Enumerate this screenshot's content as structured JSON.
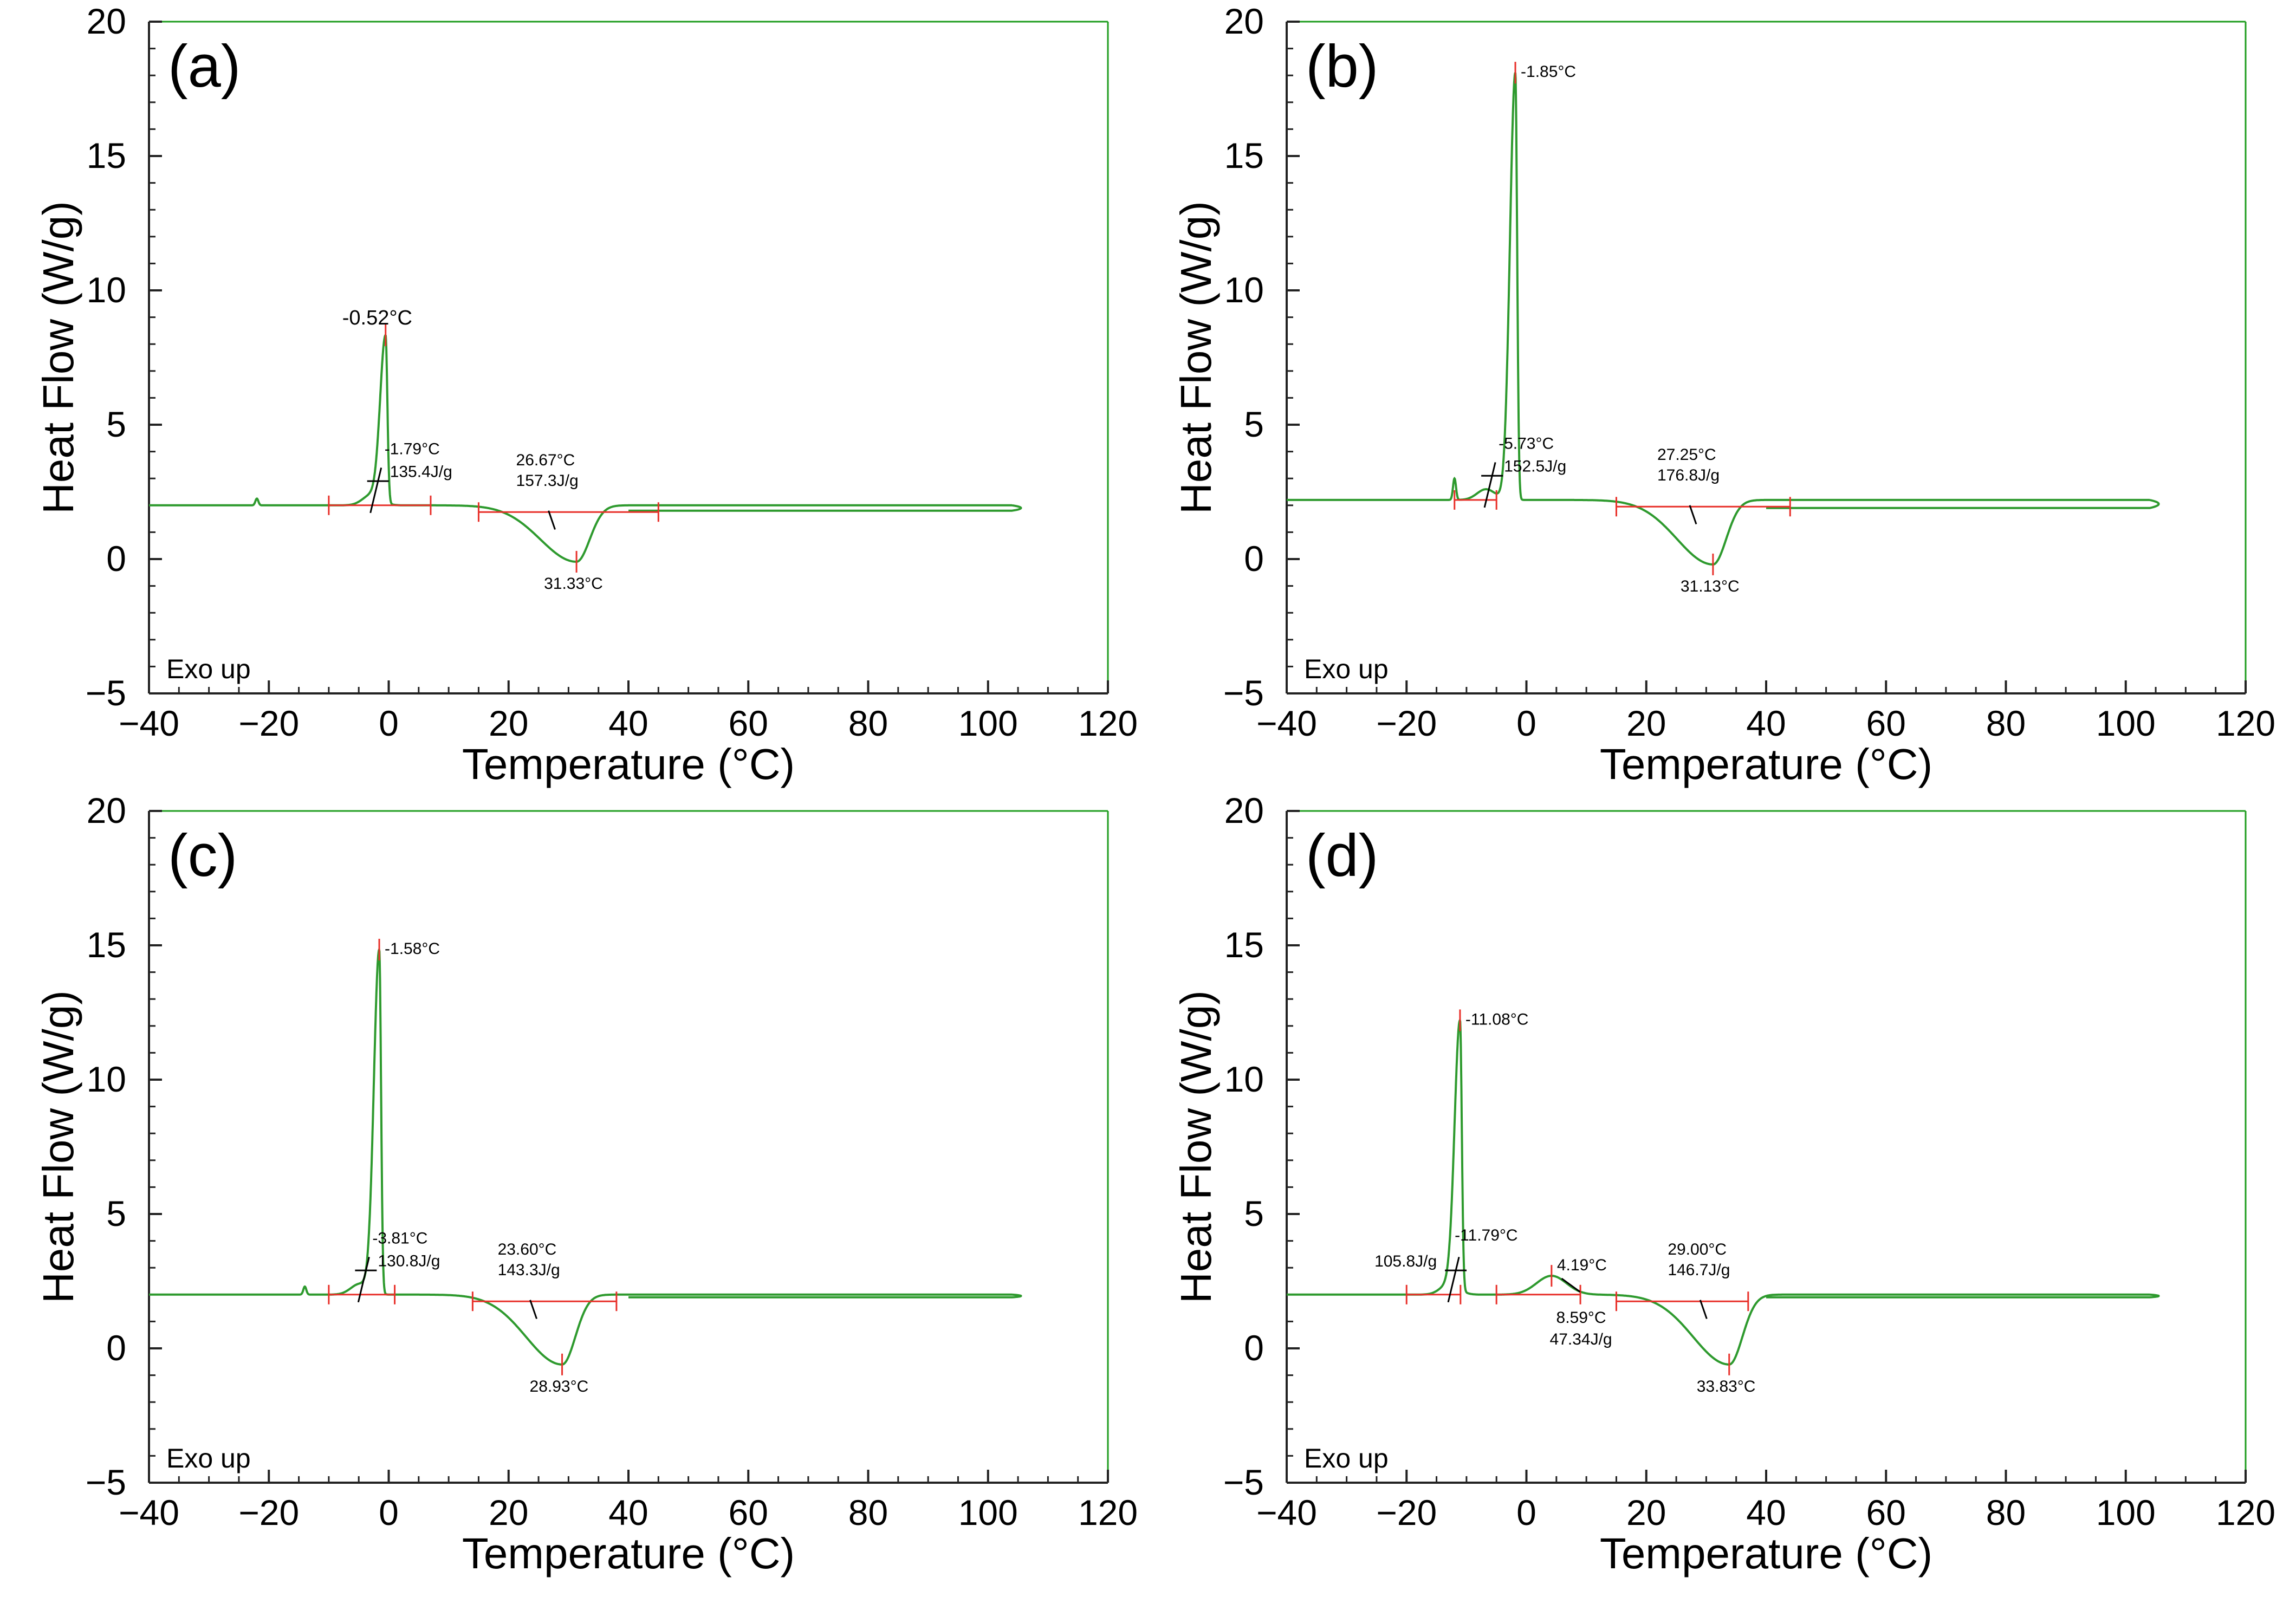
{
  "figure": {
    "type": "multi-panel DSC thermogram"
  },
  "colors": {
    "curve": "#2e9a2e",
    "baseline": "#e8302a",
    "tangent": "#000000",
    "frame": "#1f9d1f",
    "text": "#000000"
  },
  "chart_data": [
    {
      "type": "line",
      "panel": "a",
      "panel_label": "(a)",
      "note": "Exo up",
      "xlabel": "Temperature (°C)",
      "ylabel": "Heat Flow (W/g)",
      "xlim": [
        -40,
        120
      ],
      "ylim": [
        -5,
        20
      ],
      "xticks": [
        -40,
        -20,
        0,
        20,
        40,
        60,
        80,
        100,
        120
      ],
      "yticks": [
        -5,
        0,
        5,
        10,
        15,
        20
      ],
      "baseline_heat_flow": 2.0,
      "return_heat_flow": 1.8,
      "x_start": -40,
      "x_end": 104,
      "spike": {
        "x": -22,
        "h": 0.25
      },
      "exotherm": {
        "peak_T": -0.52,
        "peak_label": "-0.52°C",
        "onset_T": -1.79,
        "onset_label": "-1.79°C",
        "enthalpy_label": "135.4J/g",
        "height": 8.2,
        "limits": [
          -10,
          7
        ]
      },
      "exotherm2": null,
      "endotherm": {
        "peak_T": 31.33,
        "peak_label": "31.33°C",
        "onset_T": 26.67,
        "onset_label": "26.67°C",
        "enthalpy_label": "157.3J/g",
        "min": -0.1,
        "limits": [
          15,
          45
        ]
      }
    },
    {
      "type": "line",
      "panel": "b",
      "panel_label": "(b)",
      "note": "Exo up",
      "xlabel": "Temperature (°C)",
      "ylabel": "Heat Flow (W/g)",
      "xlim": [
        -40,
        120
      ],
      "ylim": [
        -5,
        20
      ],
      "xticks": [
        -40,
        -20,
        0,
        20,
        40,
        60,
        80,
        100,
        120
      ],
      "yticks": [
        -5,
        0,
        5,
        10,
        15,
        20
      ],
      "baseline_heat_flow": 2.2,
      "return_heat_flow": 1.9,
      "x_start": -40,
      "x_end": 104,
      "spike": {
        "x": -12,
        "h": 0.8
      },
      "exotherm": {
        "peak_T": -1.85,
        "peak_label": "-1.85°C",
        "onset_T": -5.73,
        "onset_label": "-5.73°C",
        "enthalpy_label": "152.5J/g",
        "height": 18.1,
        "limits": [
          -12,
          -5
        ]
      },
      "exotherm2": null,
      "endotherm": {
        "peak_T": 31.13,
        "peak_label": "31.13°C",
        "onset_T": 27.25,
        "onset_label": "27.25°C",
        "enthalpy_label": "176.8J/g",
        "min": -0.2,
        "limits": [
          15,
          44
        ]
      }
    },
    {
      "type": "line",
      "panel": "c",
      "panel_label": "(c)",
      "note": "Exo up",
      "xlabel": "Temperature (°C)",
      "ylabel": "Heat Flow (W/g)",
      "xlim": [
        -40,
        120
      ],
      "ylim": [
        -5,
        20
      ],
      "xticks": [
        -40,
        -20,
        0,
        20,
        40,
        60,
        80,
        100,
        120
      ],
      "yticks": [
        -5,
        0,
        5,
        10,
        15,
        20
      ],
      "baseline_heat_flow": 2.0,
      "return_heat_flow": 1.9,
      "x_start": -40,
      "x_end": 104,
      "spike": {
        "x": -14,
        "h": 0.3
      },
      "exotherm": {
        "peak_T": -1.58,
        "peak_label": "-1.58°C",
        "onset_T": -3.81,
        "onset_label": "-3.81°C",
        "enthalpy_label": "130.8J/g",
        "height": 14.8,
        "limits": [
          -10,
          1
        ]
      },
      "exotherm2": null,
      "endotherm": {
        "peak_T": 28.93,
        "peak_label": "28.93°C",
        "onset_T": 23.6,
        "onset_label": "23.60°C",
        "enthalpy_label": "143.3J/g",
        "min": -0.6,
        "limits": [
          14,
          38
        ]
      }
    },
    {
      "type": "line",
      "panel": "d",
      "panel_label": "(d)",
      "note": "Exo up",
      "xlabel": "Temperature (°C)",
      "ylabel": "Heat Flow (W/g)",
      "xlim": [
        -40,
        120
      ],
      "ylim": [
        -5,
        20
      ],
      "xticks": [
        -40,
        -20,
        0,
        20,
        40,
        60,
        80,
        100,
        120
      ],
      "yticks": [
        -5,
        0,
        5,
        10,
        15,
        20
      ],
      "baseline_heat_flow": 2.0,
      "return_heat_flow": 1.9,
      "x_start": -40,
      "x_end": 104,
      "spike": null,
      "exotherm": {
        "peak_T": -11.08,
        "peak_label": "-11.08°C",
        "onset_T": -11.79,
        "onset_label": "-11.79°C",
        "enthalpy_label": "105.8J/g",
        "height": 12.0,
        "limits": [
          -20,
          -11
        ]
      },
      "exotherm2": {
        "peak_T": 4.19,
        "peak_label": "4.19°C",
        "onset_T": 8.59,
        "onset_label": "8.59°C",
        "enthalpy_label": "47.34J/g",
        "height": 2.7,
        "limits": [
          -5,
          9
        ]
      },
      "endotherm": {
        "peak_T": 33.83,
        "peak_label": "33.83°C",
        "onset_T": 29.0,
        "onset_label": "29.00°C",
        "enthalpy_label": "146.7J/g",
        "min": -0.6,
        "limits": [
          15,
          37
        ]
      }
    }
  ]
}
